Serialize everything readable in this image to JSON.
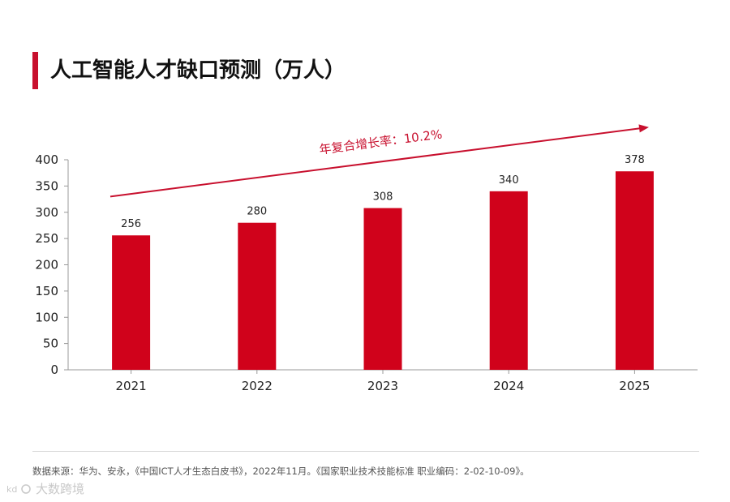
{
  "header": {
    "title": "人工智能人才缺口预测（万人）"
  },
  "footer": {
    "source": "数据来源：华为、安永，《中国ICT人才生态白皮书》，2022年11月。《国家职业技术技能标准 职业编码：2-02-10-09》。"
  },
  "watermark": {
    "text": "大数跨境",
    "logo_icon": "kd-logo-icon"
  },
  "colors": {
    "accent": "#c8102e",
    "bar": "#d0021b",
    "axis": "#999999",
    "grid": "#e8e8e8",
    "annotation": "#c8102e"
  },
  "chart_data": {
    "type": "bar",
    "title": "人工智能人才缺口预测（万人）",
    "categories": [
      "2021",
      "2022",
      "2023",
      "2024",
      "2025"
    ],
    "values": [
      256,
      280,
      308,
      340,
      378
    ],
    "data_labels": [
      "256",
      "280",
      "308",
      "340",
      "378"
    ],
    "xlabel": "",
    "ylabel": "",
    "ylim": [
      0,
      400
    ],
    "yticks": [
      "0",
      "50",
      "100",
      "150",
      "200",
      "250",
      "300",
      "350",
      "400"
    ],
    "ytick_values": [
      0,
      50,
      100,
      150,
      200,
      250,
      300,
      350,
      400
    ],
    "grid": false,
    "legend": "none",
    "annotation": {
      "text": "年复合增长率：10.2%",
      "arrow_from_value": 330,
      "arrow_to_value": 462
    }
  }
}
